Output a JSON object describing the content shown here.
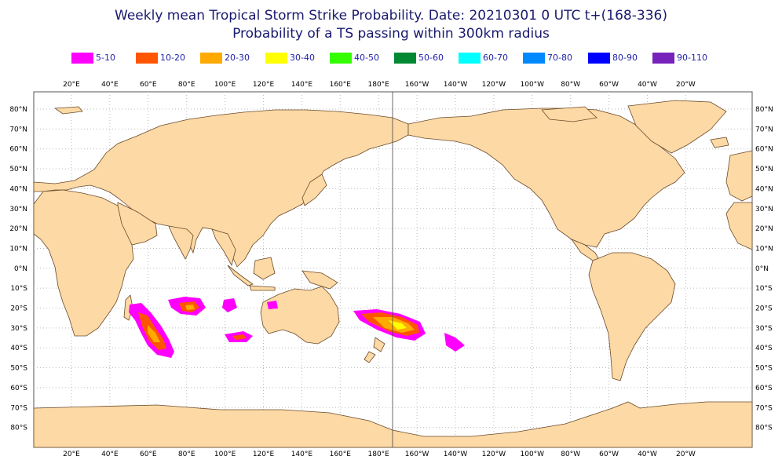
{
  "title": {
    "line1": "Weekly mean Tropical Storm Strike Probability. Date: 20210301  0 UTC    t+(168-336)",
    "line2": "Probability of a TS passing within  300km radius"
  },
  "legend": [
    {
      "label": "5-10",
      "color": "#ff00ff"
    },
    {
      "label": "10-20",
      "color": "#ff5500"
    },
    {
      "label": "20-30",
      "color": "#ffaa00"
    },
    {
      "label": "30-40",
      "color": "#ffff00"
    },
    {
      "label": "40-50",
      "color": "#33ff00"
    },
    {
      "label": "50-60",
      "color": "#008833"
    },
    {
      "label": "60-70",
      "color": "#00ffff"
    },
    {
      "label": "70-80",
      "color": "#0088ff"
    },
    {
      "label": "80-90",
      "color": "#0000ff"
    },
    {
      "label": "90-110",
      "color": "#7722bb"
    }
  ],
  "map": {
    "lon_labels": [
      "20°E",
      "40°E",
      "60°E",
      "80°E",
      "100°E",
      "120°E",
      "140°E",
      "160°E",
      "180°E",
      "160°W",
      "140°W",
      "120°W",
      "100°W",
      "80°W",
      "60°W",
      "40°W",
      "20°W"
    ],
    "lat_labels": [
      "80°N",
      "70°N",
      "60°N",
      "50°N",
      "40°N",
      "30°N",
      "20°N",
      "10°N",
      "0°N",
      "10°S",
      "20°S",
      "30°S",
      "40°S",
      "50°S",
      "60°S",
      "70°S",
      "80°S"
    ],
    "land_color": "#fcd9a5",
    "ocean_color": "#ffffff",
    "strike_areas": [
      {
        "region": "Mascarene / south-west Indian Ocean",
        "max_band": "20-30"
      },
      {
        "region": "central south Indian Ocean",
        "max_band": "10-20"
      },
      {
        "region": "south-east Indian Ocean",
        "max_band": "5-10"
      },
      {
        "region": "off north-west Australia",
        "max_band": "5-10"
      },
      {
        "region": "south-west Australia",
        "max_band": "10-20"
      },
      {
        "region": "Tasman Sea / north of New Zealand",
        "max_band": "30-40"
      },
      {
        "region": "south Pacific near 140°W",
        "max_band": "5-10"
      }
    ]
  }
}
